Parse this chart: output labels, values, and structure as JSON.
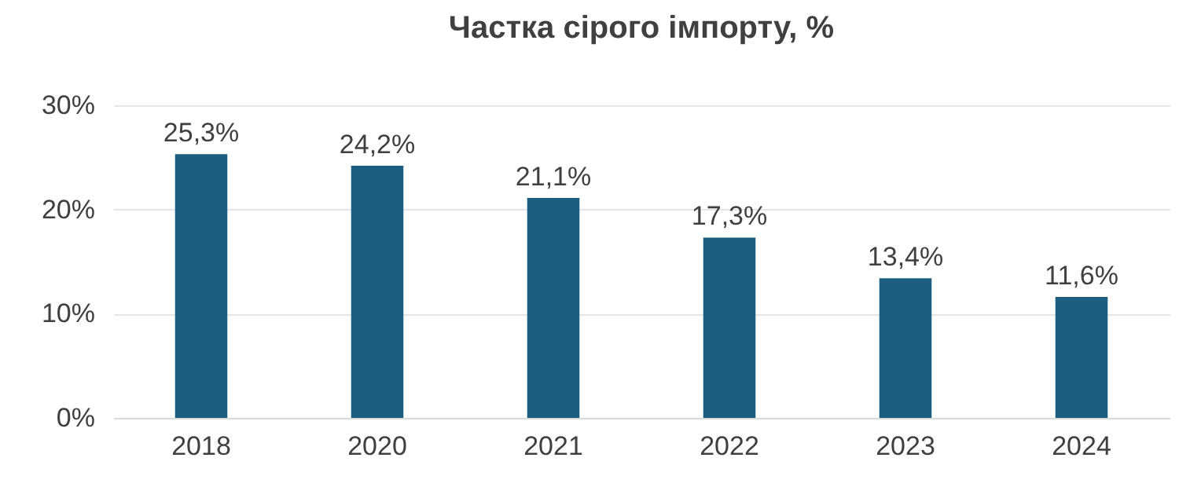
{
  "chart_data": {
    "type": "bar",
    "title": "Частка сірого імпорту, %",
    "categories": [
      "2018",
      "2020",
      "2021",
      "2022",
      "2023",
      "2024"
    ],
    "values": [
      25.3,
      24.2,
      21.1,
      17.3,
      13.4,
      11.6
    ],
    "value_labels": [
      "25,3%",
      "24,2%",
      "21,1%",
      "17,3%",
      "13,4%",
      "11,6%"
    ],
    "color": "#1b5e80",
    "ylim": [
      0,
      30
    ],
    "yticks": [
      {
        "value": 0,
        "label": "0%"
      },
      {
        "value": 10,
        "label": "10%"
      },
      {
        "value": 20,
        "label": "20%"
      },
      {
        "value": 30,
        "label": "30%"
      }
    ],
    "grid": "y"
  }
}
